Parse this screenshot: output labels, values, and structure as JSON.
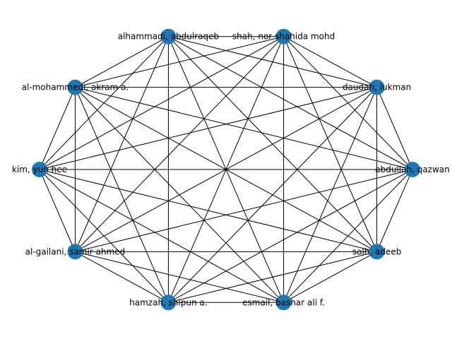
{
  "graph": {
    "type": "complete-graph",
    "node_color": "#1f77b4",
    "edge_color": "#000000",
    "nodes": [
      {
        "id": "abdullah",
        "label": "abdullah, qazwan"
      },
      {
        "id": "daudah",
        "label": "daudah, lukman"
      },
      {
        "id": "shah",
        "label": "shah, nor shahida mohd"
      },
      {
        "id": "alhammadi",
        "label": "alhammadi, abdulraqeb"
      },
      {
        "id": "almohammedi",
        "label": "al-mohammedi, akram a."
      },
      {
        "id": "kim",
        "label": "kim, yun hee"
      },
      {
        "id": "algailani",
        "label": "al-gailani, samir ahmed"
      },
      {
        "id": "hamzah",
        "label": "hamzah, shipun a."
      },
      {
        "id": "esmail",
        "label": "esmail, bashar ali f."
      },
      {
        "id": "salh",
        "label": "salh, adeeb"
      }
    ]
  }
}
